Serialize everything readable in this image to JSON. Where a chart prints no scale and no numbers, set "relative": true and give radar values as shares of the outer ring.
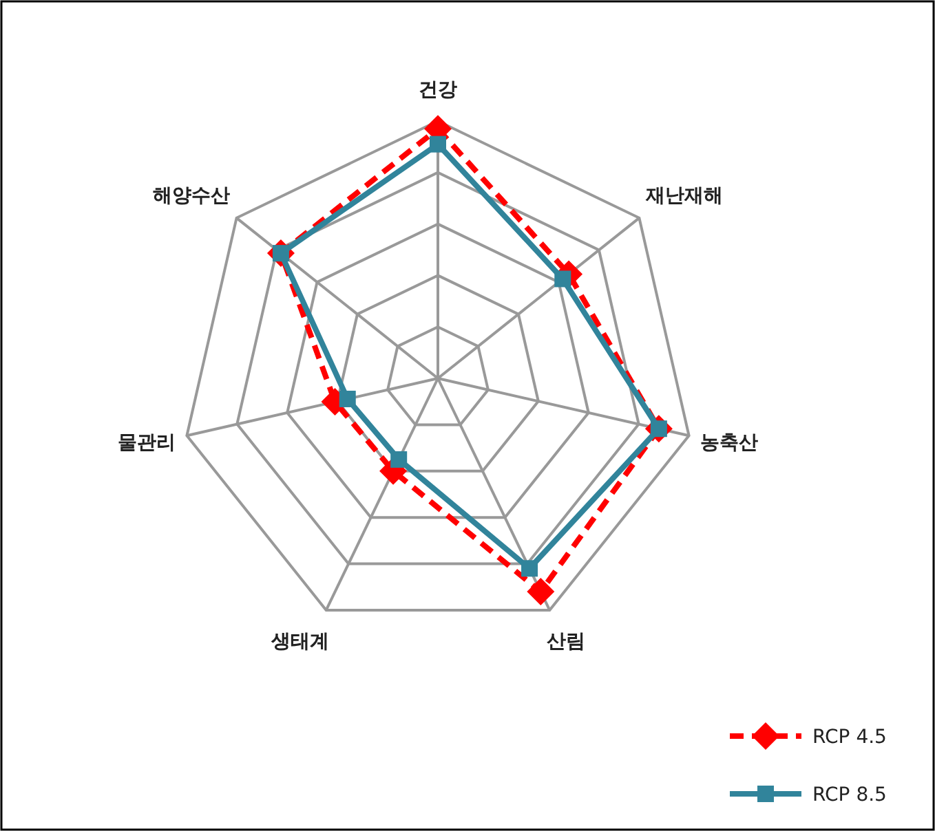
{
  "chart_data": {
    "type": "radar",
    "relative": true,
    "grid": true,
    "legend": "bottom right",
    "categories": [
      "건강",
      "재난재해",
      "농축산",
      "산림",
      "생태계",
      "물관리",
      "해양수산"
    ],
    "series": [
      {
        "name": "RCP 4.5",
        "color": "#ff0000",
        "line_style": "dashed",
        "marker": "diamond",
        "values": [
          0.97,
          0.65,
          0.88,
          0.92,
          0.4,
          0.41,
          0.78
        ]
      },
      {
        "name": "RCP 8.5",
        "color": "#31849b",
        "line_style": "solid",
        "marker": "square",
        "values": [
          0.91,
          0.62,
          0.88,
          0.82,
          0.35,
          0.36,
          0.78
        ]
      }
    ]
  }
}
